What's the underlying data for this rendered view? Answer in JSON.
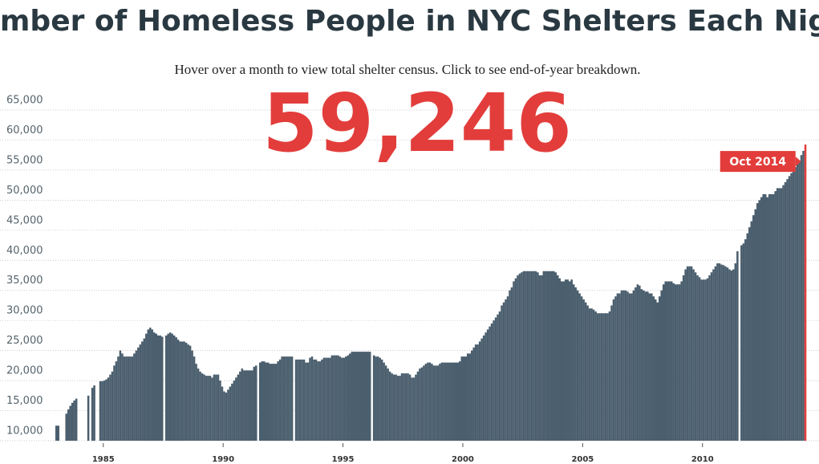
{
  "chart_data": {
    "type": "bar",
    "title": "Number of Homeless People in NYC Shelters Each Night",
    "subtitle": "Hover over a month to view total shelter census. Click to see end-of-year breakdown.",
    "hover_value": "59,246",
    "color": "#4b5f6e",
    "highlight_color": "#e23d3b",
    "x": [
      "Jul 1983",
      "Aug 1983",
      "Sep 1983",
      "Oct 1983",
      "Nov 1983",
      "Dec 1983",
      "Jan 1984",
      "Feb 1984",
      "Mar 1984",
      "Apr 1984",
      "May 1984",
      "Jun 1984",
      "Jul 1984",
      "Aug 1984",
      "Sep 1984",
      "Oct 1984",
      "Nov 1984",
      "Dec 1984",
      "Jan 1985",
      "Feb 1985",
      "Mar 1985",
      "Apr 1985",
      "May 1985",
      "Jun 1985",
      "Jul 1985",
      "Aug 1985",
      "Sep 1985",
      "Oct 1985",
      "Nov 1985",
      "Dec 1985",
      "Jan 1986",
      "Feb 1986",
      "Mar 1986",
      "Apr 1986",
      "May 1986",
      "Jun 1986",
      "Jul 1986",
      "Aug 1986",
      "Sep 1986",
      "Oct 1986",
      "Nov 1986",
      "Dec 1986",
      "Jan 1987",
      "Feb 1987",
      "Mar 1987",
      "Apr 1987",
      "May 1987",
      "Jun 1987",
      "Jul 1987",
      "Aug 1987",
      "Sep 1987",
      "Oct 1987",
      "Nov 1987",
      "Dec 1987",
      "Jan 1988",
      "Feb 1988",
      "Mar 1988",
      "Apr 1988",
      "May 1988",
      "Jun 1988",
      "Jul 1988",
      "Aug 1988",
      "Sep 1988",
      "Oct 1988",
      "Nov 1988",
      "Dec 1988",
      "Jan 1989",
      "Feb 1989",
      "Mar 1989",
      "Apr 1989",
      "May 1989",
      "Jun 1989",
      "Jul 1989",
      "Aug 1989",
      "Sep 1989",
      "Oct 1989",
      "Nov 1989",
      "Dec 1989",
      "Jan 1990",
      "Feb 1990",
      "Mar 1990",
      "Apr 1990",
      "May 1990",
      "Jun 1990",
      "Jul 1990",
      "Aug 1990",
      "Sep 1990",
      "Oct 1990",
      "Nov 1990",
      "Dec 1990",
      "Jan 1991",
      "Feb 1991",
      "Mar 1991",
      "Apr 1991",
      "May 1991",
      "Jun 1991",
      "Jul 1991",
      "Aug 1991",
      "Sep 1991",
      "Oct 1991",
      "Nov 1991",
      "Dec 1991",
      "Jan 1992",
      "Feb 1992",
      "Mar 1992",
      "Apr 1992",
      "May 1992",
      "Jun 1992",
      "Jul 1992",
      "Aug 1992",
      "Sep 1992",
      "Oct 1992",
      "Nov 1992",
      "Dec 1992",
      "Jan 1993",
      "Feb 1993",
      "Mar 1993",
      "Apr 1993",
      "May 1993",
      "Jun 1993",
      "Jul 1993",
      "Aug 1993",
      "Sep 1993",
      "Oct 1993",
      "Nov 1993",
      "Dec 1993",
      "Jan 1994",
      "Feb 1994",
      "Mar 1994",
      "Apr 1994",
      "May 1994",
      "Jun 1994",
      "Jul 1994",
      "Aug 1994",
      "Sep 1994",
      "Oct 1994",
      "Nov 1994",
      "Dec 1994",
      "Jan 1995",
      "Feb 1995",
      "Mar 1995",
      "Apr 1995",
      "May 1995",
      "Jun 1995",
      "Jul 1995",
      "Aug 1995",
      "Sep 1995",
      "Oct 1995",
      "Nov 1995",
      "Dec 1995",
      "Jan 1996",
      "Feb 1996",
      "Mar 1996",
      "Apr 1996",
      "May 1996",
      "Jun 1996",
      "Jul 1996",
      "Aug 1996",
      "Sep 1996",
      "Oct 1996",
      "Nov 1996",
      "Dec 1996",
      "Jan 1997",
      "Feb 1997",
      "Mar 1997",
      "Apr 1997",
      "May 1997",
      "Jun 1997",
      "Jul 1997",
      "Aug 1997",
      "Sep 1997",
      "Oct 1997",
      "Nov 1997",
      "Dec 1997",
      "Jan 1998",
      "Feb 1998",
      "Mar 1998",
      "Apr 1998",
      "May 1998",
      "Jun 1998",
      "Jul 1998",
      "Aug 1998",
      "Sep 1998",
      "Oct 1998",
      "Nov 1998",
      "Dec 1998",
      "Jan 1999",
      "Feb 1999",
      "Mar 1999",
      "Apr 1999",
      "May 1999",
      "Jun 1999",
      "Jul 1999",
      "Aug 1999",
      "Sep 1999",
      "Oct 1999",
      "Nov 1999",
      "Dec 1999",
      "Jan 2000",
      "Feb 2000",
      "Mar 2000",
      "Apr 2000",
      "May 2000",
      "Jun 2000",
      "Jul 2000",
      "Aug 2000",
      "Sep 2000",
      "Oct 2000",
      "Nov 2000",
      "Dec 2000",
      "Jan 2001",
      "Feb 2001",
      "Mar 2001",
      "Apr 2001",
      "May 2001",
      "Jun 2001",
      "Jul 2001",
      "Aug 2001",
      "Sep 2001",
      "Oct 2001",
      "Nov 2001",
      "Dec 2001",
      "Jan 2002",
      "Feb 2002",
      "Mar 2002",
      "Apr 2002",
      "May 2002",
      "Jun 2002",
      "Jul 2002",
      "Aug 2002",
      "Sep 2002",
      "Oct 2002",
      "Nov 2002",
      "Dec 2002",
      "Jan 2003",
      "Feb 2003",
      "Mar 2003",
      "Apr 2003",
      "May 2003",
      "Jun 2003",
      "Jul 2003",
      "Aug 2003",
      "Sep 2003",
      "Oct 2003",
      "Nov 2003",
      "Dec 2003",
      "Jan 2004",
      "Feb 2004",
      "Mar 2004",
      "Apr 2004",
      "May 2004",
      "Jun 2004",
      "Jul 2004",
      "Aug 2004",
      "Sep 2004",
      "Oct 2004",
      "Nov 2004",
      "Dec 2004",
      "Jan 2005",
      "Feb 2005",
      "Mar 2005",
      "Apr 2005",
      "May 2005",
      "Jun 2005",
      "Jul 2005",
      "Aug 2005",
      "Sep 2005",
      "Oct 2005",
      "Nov 2005",
      "Dec 2005",
      "Jan 2006",
      "Feb 2006",
      "Mar 2006",
      "Apr 2006",
      "May 2006",
      "Jun 2006",
      "Jul 2006",
      "Aug 2006",
      "Sep 2006",
      "Oct 2006",
      "Nov 2006",
      "Dec 2006",
      "Jan 2007",
      "Feb 2007",
      "Mar 2007",
      "Apr 2007",
      "May 2007",
      "Jun 2007",
      "Jul 2007",
      "Aug 2007",
      "Sep 2007",
      "Oct 2007",
      "Nov 2007",
      "Dec 2007",
      "Jan 2008",
      "Feb 2008",
      "Mar 2008",
      "Apr 2008",
      "May 2008",
      "Jun 2008",
      "Jul 2008",
      "Aug 2008",
      "Sep 2008",
      "Oct 2008",
      "Nov 2008",
      "Dec 2008",
      "Jan 2009",
      "Feb 2009",
      "Mar 2009",
      "Apr 2009",
      "May 2009",
      "Jun 2009",
      "Jul 2009",
      "Aug 2009",
      "Sep 2009",
      "Oct 2009",
      "Nov 2009",
      "Dec 2009",
      "Jan 2010",
      "Feb 2010",
      "Mar 2010",
      "Apr 2010",
      "May 2010",
      "Jun 2010",
      "Jul 2010",
      "Aug 2010",
      "Sep 2010",
      "Oct 2010",
      "Nov 2010",
      "Dec 2010",
      "Jan 2011",
      "Feb 2011",
      "Mar 2011",
      "Apr 2011",
      "May 2011",
      "Jun 2011",
      "Jul 2011",
      "Aug 2011",
      "Sep 2011",
      "Oct 2011",
      "Nov 2011",
      "Dec 2011",
      "Jan 2012",
      "Feb 2012",
      "Mar 2012",
      "Apr 2012",
      "May 2012",
      "Jun 2012",
      "Jul 2012",
      "Aug 2012",
      "Sep 2012",
      "Oct 2012",
      "Nov 2012",
      "Dec 2012",
      "Jan 2013",
      "Feb 2013",
      "Mar 2013",
      "Apr 2013",
      "May 2013",
      "Jun 2013",
      "Jul 2013",
      "Aug 2013",
      "Sep 2013",
      "Oct 2013",
      "Nov 2013",
      "Dec 2013",
      "Jan 2014",
      "Feb 2014",
      "Mar 2014",
      "Apr 2014",
      "May 2014",
      "Jun 2014",
      "Jul 2014",
      "Aug 2014",
      "Sep 2014",
      "Oct 2014"
    ],
    "values": [
      12500,
      12500,
      null,
      null,
      null,
      14500,
      15200,
      15800,
      16300,
      16700,
      17000,
      null,
      null,
      null,
      null,
      null,
      17500,
      null,
      18800,
      19200,
      null,
      null,
      19900,
      19900,
      20000,
      20200,
      20500,
      21000,
      21500,
      22500,
      23200,
      24000,
      25000,
      24500,
      24000,
      24000,
      24000,
      24000,
      24000,
      24500,
      25000,
      25500,
      26000,
      26500,
      27000,
      27800,
      28500,
      28800,
      28500,
      28000,
      27800,
      27500,
      27500,
      27300,
      null,
      27500,
      27800,
      28000,
      27800,
      27500,
      27200,
      26800,
      26500,
      26500,
      26500,
      26300,
      26000,
      25800,
      25000,
      24000,
      22800,
      22000,
      21500,
      21200,
      21000,
      20800,
      20800,
      20800,
      20500,
      21000,
      21000,
      21000,
      20000,
      19000,
      18200,
      18000,
      18500,
      19000,
      19500,
      20000,
      20500,
      21000,
      21500,
      22000,
      21700,
      21700,
      21700,
      21700,
      21700,
      22300,
      22500,
      null,
      23000,
      23200,
      23200,
      23000,
      23000,
      22800,
      22800,
      22800,
      22800,
      23200,
      23500,
      24000,
      24000,
      24000,
      24000,
      24000,
      24000,
      null,
      23500,
      23500,
      23500,
      23500,
      23500,
      23000,
      23000,
      23800,
      24000,
      23500,
      23500,
      23200,
      23200,
      23500,
      23800,
      23800,
      23800,
      23800,
      24200,
      24200,
      24200,
      24200,
      24000,
      23800,
      23800,
      24000,
      24200,
      24500,
      24800,
      24800,
      24800,
      24800,
      24800,
      24800,
      24800,
      24800,
      24800,
      24800,
      null,
      24200,
      24000,
      24000,
      23800,
      23500,
      23000,
      22500,
      22000,
      21500,
      21200,
      21000,
      21000,
      20800,
      20800,
      21200,
      21200,
      21200,
      21200,
      21000,
      20500,
      20500,
      21000,
      21500,
      22000,
      22200,
      22500,
      22800,
      23000,
      23000,
      22800,
      22500,
      22500,
      22500,
      22800,
      23000,
      23000,
      23000,
      23000,
      23000,
      23000,
      23000,
      23000,
      23000,
      23200,
      24000,
      24000,
      24000,
      24500,
      24500,
      25000,
      25500,
      26000,
      26000,
      26500,
      27000,
      27500,
      28000,
      28500,
      29000,
      29500,
      30000,
      30500,
      31000,
      31500,
      32500,
      33000,
      33500,
      34000,
      35000,
      35500,
      36500,
      37000,
      37500,
      37800,
      38000,
      38200,
      38200,
      38200,
      38200,
      38200,
      38200,
      38200,
      38000,
      37500,
      37500,
      38200,
      38200,
      38200,
      38200,
      38200,
      38200,
      38000,
      37500,
      37000,
      36500,
      36500,
      36800,
      36800,
      36500,
      36800,
      36000,
      35500,
      35000,
      34500,
      34000,
      33500,
      33000,
      32500,
      32000,
      32000,
      31800,
      31500,
      31200,
      31200,
      31200,
      31200,
      31200,
      31200,
      31500,
      32500,
      33500,
      34000,
      34500,
      34500,
      35000,
      35000,
      35000,
      34800,
      34500,
      34500,
      35000,
      35500,
      36000,
      35800,
      35200,
      35000,
      34800,
      34800,
      34500,
      34500,
      34000,
      33500,
      33000,
      34000,
      35000,
      36000,
      36500,
      36500,
      36500,
      36500,
      36200,
      36000,
      36000,
      36000,
      36500,
      37500,
      38500,
      39000,
      39000,
      39000,
      38500,
      38000,
      37500,
      37200,
      36800,
      36800,
      36800,
      37000,
      37500,
      38000,
      38500,
      39000,
      39500,
      39500,
      39300,
      39200,
      39000,
      38800,
      38500,
      38300,
      38500,
      39500,
      41500,
      null,
      42500,
      42800,
      43500,
      44500,
      45500,
      46500,
      47500,
      48500,
      49500,
      50000,
      50500,
      51000,
      51000,
      50500,
      51000,
      51000,
      51000,
      51500,
      52000,
      52000,
      52000,
      52500,
      53000,
      53500,
      54000,
      54500,
      55000,
      55500,
      56000,
      56500,
      57500,
      58200,
      59246
    ],
    "ylim": [
      10000,
      65000
    ],
    "yticks": [
      {
        "value": 10000,
        "label": "10,000"
      },
      {
        "value": 15000,
        "label": "15,000"
      },
      {
        "value": 20000,
        "label": "20,000"
      },
      {
        "value": 25000,
        "label": "25,000"
      },
      {
        "value": 30000,
        "label": "30,000"
      },
      {
        "value": 35000,
        "label": "35,000"
      },
      {
        "value": 40000,
        "label": "40,000"
      },
      {
        "value": 45000,
        "label": "45,000"
      },
      {
        "value": 50000,
        "label": "50,000"
      },
      {
        "value": 55000,
        "label": "55,000"
      },
      {
        "value": 60000,
        "label": "60,000"
      },
      {
        "value": 65000,
        "label": "65,000"
      }
    ],
    "xticks": [
      1985,
      1990,
      1995,
      2000,
      2005,
      2010
    ],
    "grid": true
  }
}
